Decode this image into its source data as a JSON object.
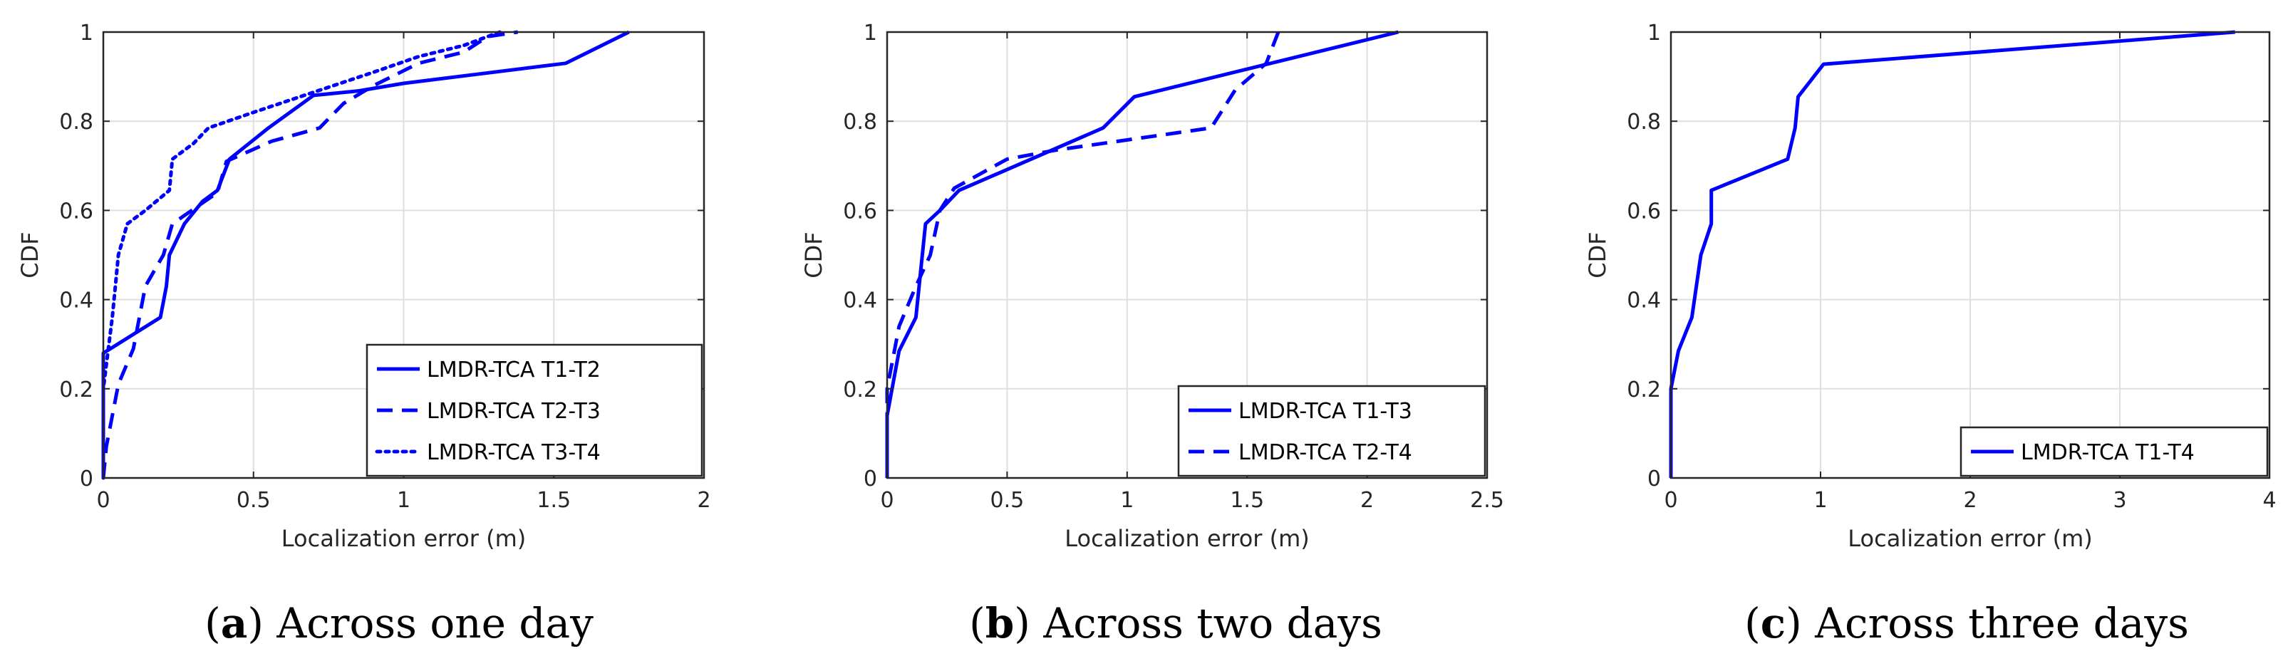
{
  "chart_data": [
    {
      "type": "line",
      "caption": {
        "letter": "a",
        "text": "Across one day"
      },
      "xlabel": "Localization error (m)",
      "ylabel": "CDF",
      "xlim": [
        0,
        2
      ],
      "ylim": [
        0,
        1
      ],
      "xticks": [
        "0",
        "0.5",
        "1",
        "1.5",
        "2"
      ],
      "yticks": [
        "0",
        "0.2",
        "0.4",
        "0.6",
        "0.8",
        "1"
      ],
      "grid": true,
      "legend_position": "bottom-right",
      "color": "#0000ff",
      "series": [
        {
          "name": "LMDR-TCA T1-T2",
          "dash": "solid",
          "points": [
            [
              0,
              0
            ],
            [
              0,
              0.28
            ],
            [
              0.19,
              0.36
            ],
            [
              0.21,
              0.43
            ],
            [
              0.22,
              0.5
            ],
            [
              0.27,
              0.57
            ],
            [
              0.33,
              0.62
            ],
            [
              0.38,
              0.645
            ],
            [
              0.42,
              0.715
            ],
            [
              0.55,
              0.785
            ],
            [
              0.7,
              0.858
            ],
            [
              0.85,
              0.868
            ],
            [
              1.0,
              0.885
            ],
            [
              1.54,
              0.93
            ],
            [
              1.75,
              1.0
            ]
          ]
        },
        {
          "name": "LMDR-TCA T2-T3",
          "dash": "dashed",
          "points": [
            [
              0,
              0
            ],
            [
              0.01,
              0.07
            ],
            [
              0.05,
              0.21
            ],
            [
              0.1,
              0.29
            ],
            [
              0.14,
              0.43
            ],
            [
              0.2,
              0.5
            ],
            [
              0.23,
              0.57
            ],
            [
              0.38,
              0.64
            ],
            [
              0.41,
              0.71
            ],
            [
              0.56,
              0.755
            ],
            [
              0.72,
              0.785
            ],
            [
              0.8,
              0.84
            ],
            [
              0.9,
              0.88
            ],
            [
              1.05,
              0.93
            ],
            [
              1.2,
              0.955
            ],
            [
              1.28,
              0.99
            ],
            [
              1.38,
              1.0
            ]
          ]
        },
        {
          "name": "LMDR-TCA T3-T4",
          "dash": "dotted",
          "points": [
            [
              0,
              0
            ],
            [
              0,
              0.2
            ],
            [
              0.03,
              0.36
            ],
            [
              0.04,
              0.43
            ],
            [
              0.05,
              0.5
            ],
            [
              0.08,
              0.57
            ],
            [
              0.14,
              0.6
            ],
            [
              0.22,
              0.645
            ],
            [
              0.23,
              0.715
            ],
            [
              0.3,
              0.75
            ],
            [
              0.35,
              0.785
            ],
            [
              0.5,
              0.82
            ],
            [
              0.7,
              0.865
            ],
            [
              0.9,
              0.91
            ],
            [
              1.05,
              0.945
            ],
            [
              1.2,
              0.97
            ],
            [
              1.32,
              1.0
            ]
          ]
        }
      ]
    },
    {
      "type": "line",
      "caption": {
        "letter": "b",
        "text": "Across two days"
      },
      "xlabel": "Localization error (m)",
      "ylabel": "CDF",
      "xlim": [
        0,
        2.5
      ],
      "ylim": [
        0,
        1
      ],
      "xticks": [
        "0",
        "0.5",
        "1",
        "1.5",
        "2",
        "2.5"
      ],
      "yticks": [
        "0",
        "0.2",
        "0.4",
        "0.6",
        "0.8",
        "1"
      ],
      "grid": true,
      "legend_position": "bottom-right",
      "color": "#0000ff",
      "series": [
        {
          "name": "LMDR-TCA T1-T3",
          "dash": "solid",
          "points": [
            [
              0,
              0
            ],
            [
              0,
              0.14
            ],
            [
              0.05,
              0.285
            ],
            [
              0.12,
              0.36
            ],
            [
              0.16,
              0.57
            ],
            [
              0.22,
              0.6
            ],
            [
              0.3,
              0.645
            ],
            [
              0.9,
              0.785
            ],
            [
              1.03,
              0.855
            ],
            [
              2.13,
              1.0
            ]
          ]
        },
        {
          "name": "LMDR-TCA T2-T4",
          "dash": "dashed",
          "points": [
            [
              0,
              0
            ],
            [
              0,
              0.2
            ],
            [
              0.05,
              0.34
            ],
            [
              0.12,
              0.43
            ],
            [
              0.18,
              0.5
            ],
            [
              0.22,
              0.6
            ],
            [
              0.28,
              0.65
            ],
            [
              0.5,
              0.715
            ],
            [
              0.7,
              0.735
            ],
            [
              1.35,
              0.785
            ],
            [
              1.45,
              0.87
            ],
            [
              1.58,
              0.93
            ],
            [
              1.63,
              1.0
            ]
          ]
        }
      ]
    },
    {
      "type": "line",
      "caption": {
        "letter": "c",
        "text": "Across three days"
      },
      "xlabel": "Localization error (m)",
      "ylabel": "CDF",
      "xlim": [
        0,
        4
      ],
      "ylim": [
        0,
        1
      ],
      "xticks": [
        "0",
        "1",
        "2",
        "3",
        "4"
      ],
      "yticks": [
        "0",
        "0.2",
        "0.4",
        "0.6",
        "0.8",
        "1"
      ],
      "grid": true,
      "legend_position": "bottom-right",
      "color": "#0000ff",
      "series": [
        {
          "name": "LMDR-TCA T1-T4",
          "dash": "solid",
          "points": [
            [
              0,
              0
            ],
            [
              0,
              0.2
            ],
            [
              0.05,
              0.285
            ],
            [
              0.14,
              0.36
            ],
            [
              0.2,
              0.5
            ],
            [
              0.27,
              0.57
            ],
            [
              0.27,
              0.645
            ],
            [
              0.78,
              0.715
            ],
            [
              0.83,
              0.785
            ],
            [
              0.85,
              0.855
            ],
            [
              1.02,
              0.928
            ],
            [
              3.77,
              1.0
            ]
          ]
        }
      ]
    }
  ]
}
